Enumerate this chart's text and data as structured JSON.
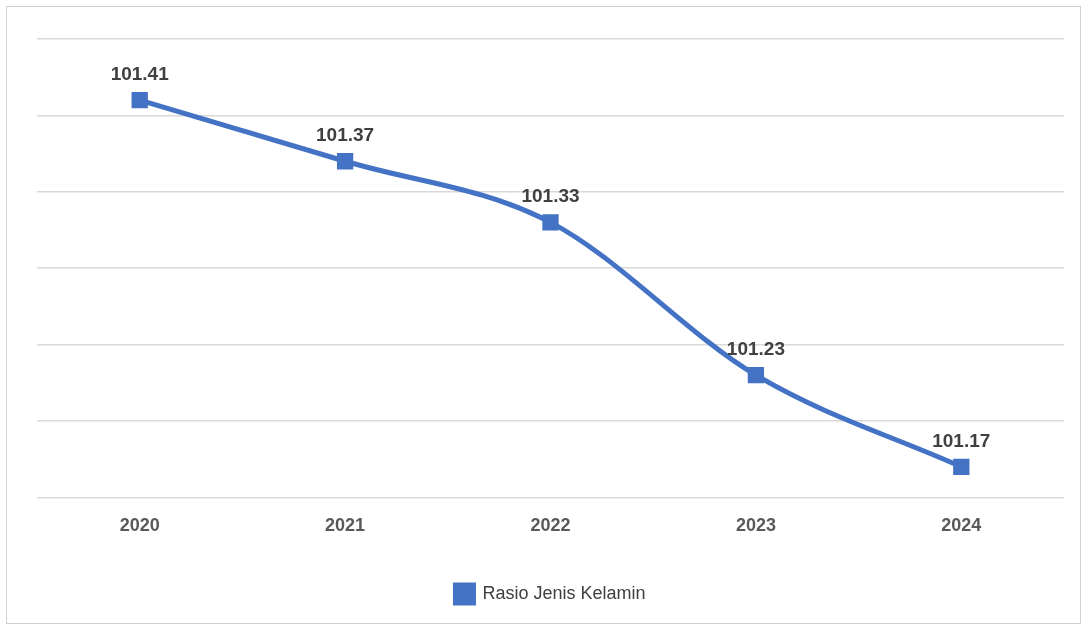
{
  "chart_data": {
    "type": "line",
    "categories": [
      "2020",
      "2021",
      "2022",
      "2023",
      "2024"
    ],
    "series": [
      {
        "name": "Rasio Jenis Kelamin",
        "color": "#4472c4",
        "values": [
          101.41,
          101.37,
          101.33,
          101.23,
          101.17
        ]
      }
    ],
    "ylim": [
      101.15,
      101.45
    ],
    "yticks": [
      {
        "value": 101.15,
        "label": null
      },
      {
        "value": 101.2,
        "label": null
      },
      {
        "value": 101.25,
        "label": null
      },
      {
        "value": 101.3,
        "label": null
      },
      {
        "value": 101.35,
        "label": null
      },
      {
        "value": 101.4,
        "label": null
      },
      {
        "value": 101.45,
        "label": null
      }
    ],
    "tick_labels": "x",
    "grid": "y",
    "legend": "bottom",
    "marker": "square",
    "line_style": "solid",
    "data_labels": true
  }
}
